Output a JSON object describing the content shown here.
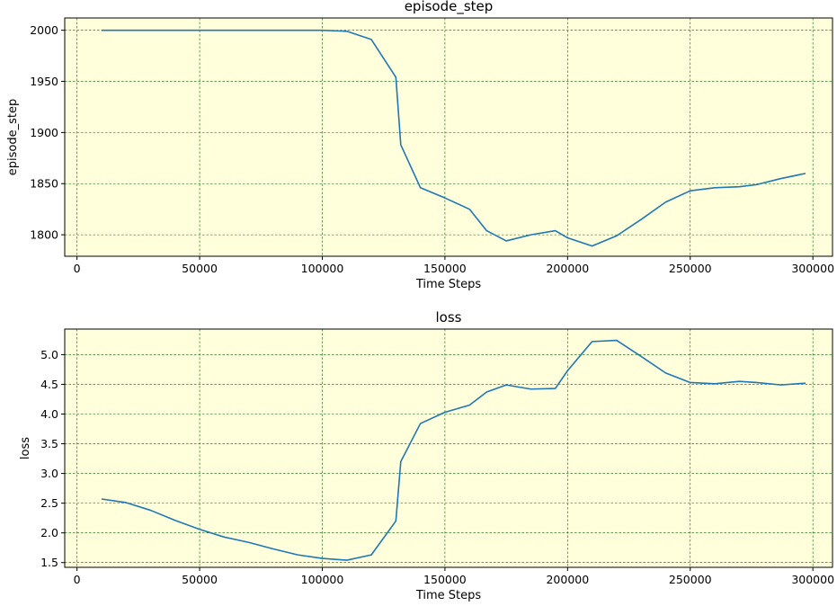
{
  "chart_data": [
    {
      "type": "line",
      "title": "episode_step",
      "xlabel": "Time Steps",
      "ylabel": "episode_step",
      "xlim": [
        -5000,
        308000
      ],
      "ylim": [
        1779,
        2012
      ],
      "xticks": [
        0,
        50000,
        100000,
        150000,
        200000,
        250000,
        300000
      ],
      "yticks": [
        1800,
        1850,
        1900,
        1950,
        2000
      ],
      "grid": true,
      "background_color": "#ffffdc",
      "grid_color": "#006400",
      "line_color": "#1f77b4",
      "series": [
        {
          "x": [
            10000,
            20000,
            30000,
            40000,
            50000,
            60000,
            70000,
            80000,
            90000,
            100000,
            110000,
            120000,
            130000,
            132000,
            140000,
            150000,
            160000,
            167000,
            175000,
            185000,
            195000,
            200000,
            210000,
            220000,
            230000,
            240000,
            250000,
            260000,
            270000,
            277000,
            287000,
            297000
          ],
          "y": [
            2000,
            2000,
            2000,
            2000,
            2000,
            2000,
            2000,
            2000,
            2000,
            2000,
            1999,
            1991,
            1954,
            1888,
            1846,
            1836,
            1825,
            1804,
            1794,
            1800,
            1804,
            1797,
            1789,
            1799,
            1815,
            1832,
            1843,
            1846,
            1847,
            1849,
            1855,
            1860
          ]
        }
      ]
    },
    {
      "type": "line",
      "title": "loss",
      "xlabel": "Time Steps",
      "ylabel": "loss",
      "xlim": [
        -5000,
        308000
      ],
      "ylim": [
        1.42,
        5.43
      ],
      "xticks": [
        0,
        50000,
        100000,
        150000,
        200000,
        250000,
        300000
      ],
      "yticks": [
        1.5,
        2.0,
        2.5,
        3.0,
        3.5,
        4.0,
        4.5,
        5.0
      ],
      "grid": true,
      "background_color": "#ffffdc",
      "grid_color": "#006400",
      "line_color": "#1f77b4",
      "series": [
        {
          "x": [
            10000,
            20000,
            30000,
            40000,
            50000,
            60000,
            70000,
            80000,
            90000,
            100000,
            110000,
            120000,
            130000,
            132000,
            140000,
            150000,
            160000,
            167000,
            175000,
            185000,
            195000,
            200000,
            210000,
            220000,
            230000,
            240000,
            250000,
            260000,
            270000,
            277000,
            287000,
            297000
          ],
          "y": [
            2.57,
            2.51,
            2.38,
            2.21,
            2.06,
            1.93,
            1.84,
            1.73,
            1.63,
            1.57,
            1.54,
            1.63,
            2.2,
            3.2,
            3.84,
            4.03,
            4.15,
            4.37,
            4.49,
            4.42,
            4.43,
            4.73,
            5.22,
            5.24,
            4.97,
            4.69,
            4.53,
            4.51,
            4.55,
            4.53,
            4.49,
            4.52
          ]
        }
      ]
    }
  ]
}
